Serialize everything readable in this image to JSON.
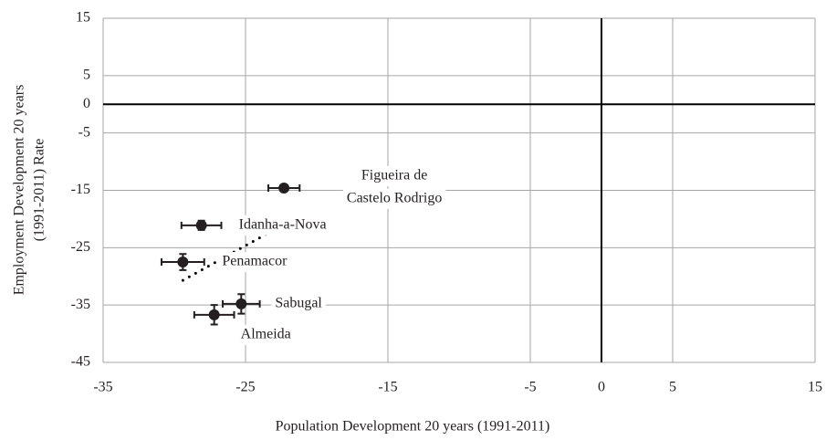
{
  "chart_data": {
    "type": "scatter",
    "xlabel": "Population Development 20 years (1991-2011)",
    "ylabel": [
      "Employment Development 20 years",
      "(1991-2011) Rate"
    ],
    "x": [
      -22.3,
      -28.1,
      -29.4,
      -25.3,
      -27.2
    ],
    "y": [
      -14.6,
      -21.1,
      -27.5,
      -34.8,
      -36.7
    ],
    "xerr": [
      1.1,
      1.4,
      1.5,
      1.3,
      1.4
    ],
    "yerr": [
      0.5,
      0.8,
      1.4,
      1.7,
      1.7
    ],
    "point_labels": [
      [
        "Figueira de",
        "Castelo Rodrigo"
      ],
      [
        "Idanha-a-Nova"
      ],
      [
        "Penamacor"
      ],
      [
        "Sabugal"
      ],
      [
        "Almeida"
      ]
    ],
    "color": "#231f20",
    "trendline": {
      "x": [
        -29.4,
        -23.3
      ],
      "y": [
        -30.7,
        -22.3
      ]
    },
    "xlim": [
      -35,
      15
    ],
    "xticks": [
      -35,
      -25,
      -15,
      -5,
      0,
      5,
      15
    ],
    "ylim": [
      -45,
      15
    ],
    "yticks": [
      15,
      5,
      0,
      -5,
      -15,
      -25,
      -35,
      -45
    ],
    "grid": true
  }
}
